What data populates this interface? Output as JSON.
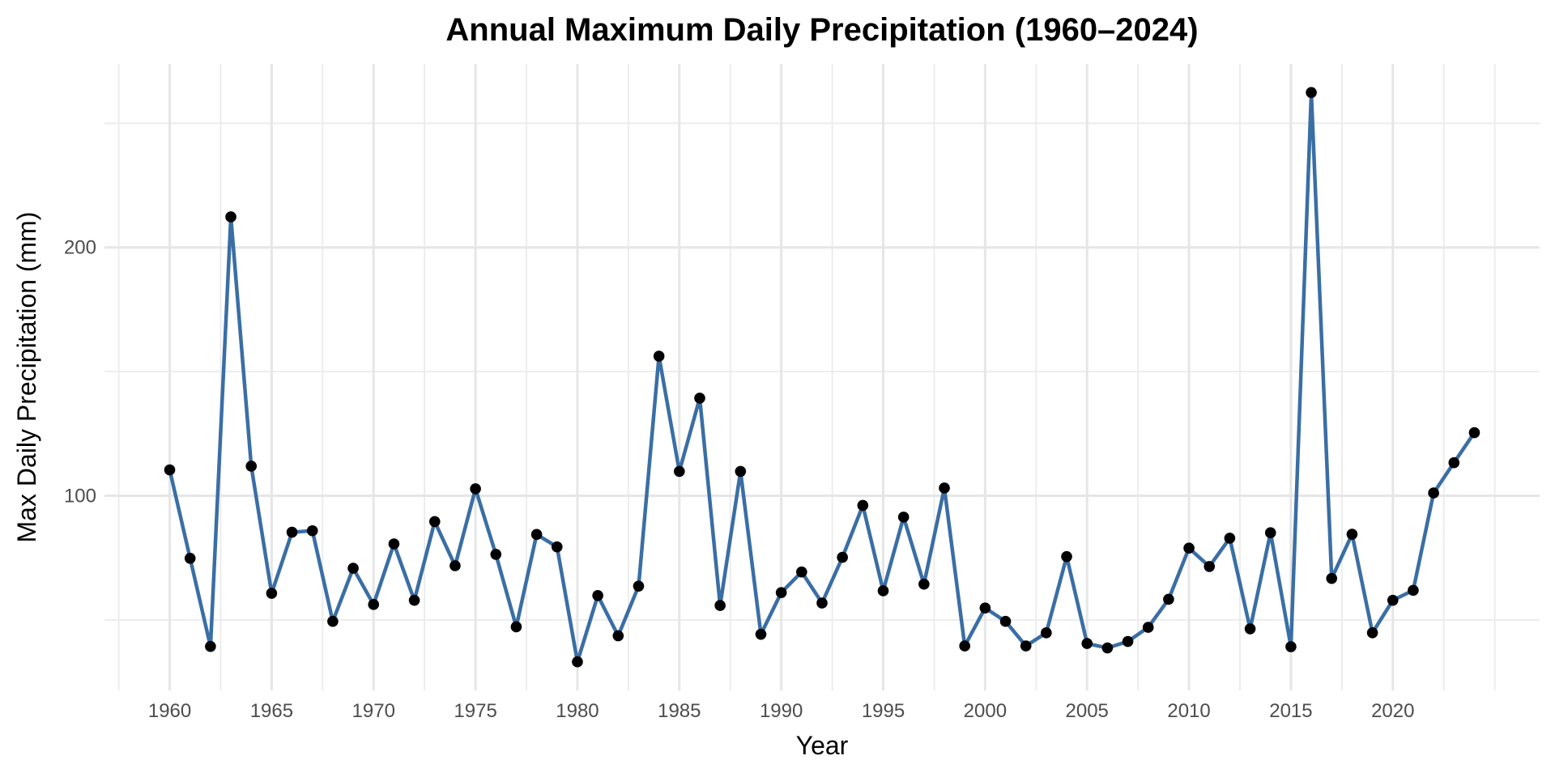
{
  "chart_data": {
    "type": "line",
    "title": "Annual Maximum Daily Precipitation (1960–2024)",
    "xlabel": "Year",
    "ylabel": "Max Daily Precipitation (mm)",
    "xlim": [
      1956.8,
      2027.2
    ],
    "ylim": [
      21.6,
      273.9
    ],
    "x_ticks": [
      1960,
      1965,
      1970,
      1975,
      1980,
      1985,
      1990,
      1995,
      2000,
      2005,
      2010,
      2015,
      2020
    ],
    "x_minor_ticks": [
      1957.5,
      1962.5,
      1967.5,
      1972.5,
      1977.5,
      1982.5,
      1987.5,
      1992.5,
      1997.5,
      2002.5,
      2007.5,
      2012.5,
      2017.5,
      2022.5,
      2025
    ],
    "y_ticks": [
      100,
      200
    ],
    "y_minor_ticks": [
      50,
      150,
      250
    ],
    "grid": true,
    "legend": "none",
    "colors": {
      "line": "#3a6ea5",
      "points": "#000000"
    },
    "series": [
      {
        "name": "Max Daily Precipitation",
        "x": [
          1960,
          1961,
          1962,
          1963,
          1964,
          1965,
          1966,
          1967,
          1968,
          1969,
          1970,
          1971,
          1972,
          1973,
          1974,
          1975,
          1976,
          1977,
          1978,
          1979,
          1980,
          1981,
          1982,
          1983,
          1984,
          1985,
          1986,
          1987,
          1988,
          1989,
          1990,
          1991,
          1992,
          1993,
          1994,
          1995,
          1996,
          1997,
          1998,
          1999,
          2000,
          2001,
          2002,
          2003,
          2004,
          2005,
          2006,
          2007,
          2008,
          2009,
          2010,
          2011,
          2012,
          2013,
          2014,
          2015,
          2016,
          2017,
          2018,
          2019,
          2020,
          2021,
          2022,
          2023,
          2024
        ],
        "values": [
          110.4,
          74.8,
          39.3,
          212.3,
          111.9,
          60.7,
          85.3,
          85.9,
          49.4,
          70.8,
          56.2,
          80.6,
          57.9,
          89.6,
          71.8,
          102.8,
          76.4,
          47.2,
          84.4,
          79.4,
          33.1,
          59.8,
          43.6,
          63.6,
          156.2,
          109.8,
          139.3,
          55.8,
          109.8,
          44.2,
          61.0,
          69.3,
          56.8,
          75.2,
          96.1,
          61.7,
          91.4,
          64.4,
          103.1,
          39.5,
          54.8,
          49.4,
          39.5,
          44.8,
          75.5,
          40.5,
          38.7,
          41.3,
          47.0,
          58.3,
          78.9,
          71.5,
          82.9,
          46.4,
          85.1,
          39.2,
          262.4,
          66.7,
          84.5,
          44.8,
          57.9,
          61.9,
          101.1,
          113.3,
          125.4
        ]
      }
    ]
  }
}
